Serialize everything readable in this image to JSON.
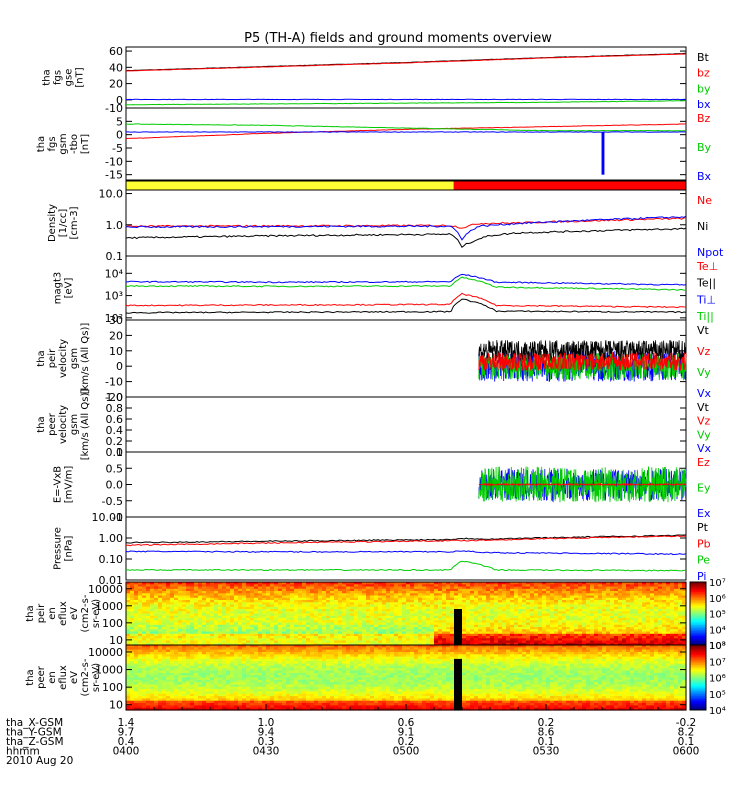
{
  "chart_data": {
    "type": "line",
    "title": "P5 (TH-A) fields and ground moments overview",
    "panels": [
      {
        "id": "fgs_gse",
        "ylabel": [
          "tha",
          "fgs",
          "gse",
          "[nT]"
        ],
        "ylim": [
          -10,
          65
        ],
        "scale": "linear",
        "yticks": [
          -10,
          0,
          20,
          40,
          60
        ],
        "ytick_labels": [
          "-10",
          "0",
          "20",
          "40",
          "60"
        ],
        "legend": [
          {
            "label": "Bt",
            "color": "#000000"
          },
          {
            "label": "bz",
            "color": "#ff0000"
          },
          {
            "label": "by",
            "color": "#00cc00"
          },
          {
            "label": "bx",
            "color": "#0000ff"
          }
        ],
        "series": [
          {
            "color": "#000000",
            "x": [
              0,
              0.25,
              0.5,
              0.75,
              1
            ],
            "y": [
              36,
              41,
              46,
              52,
              57
            ]
          },
          {
            "color": "#ff0000",
            "x": [
              0,
              0.25,
              0.5,
              0.75,
              1
            ],
            "y": [
              35.5,
              40.5,
              45.5,
              51.5,
              56.5
            ]
          },
          {
            "color": "#00cc00",
            "x": [
              0,
              0.25,
              0.5,
              0.75,
              1
            ],
            "y": [
              -6,
              -5,
              -4,
              -3,
              -1
            ]
          },
          {
            "color": "#0000ff",
            "x": [
              0,
              0.25,
              0.5,
              0.75,
              0.85,
              1
            ],
            "y": [
              0.5,
              0.5,
              0.5,
              0.5,
              0.5,
              0.5
            ]
          }
        ]
      },
      {
        "id": "fgs_gsm",
        "ylabel": [
          "tha",
          "fgs",
          "gsm",
          "-tbo",
          "[nT]"
        ],
        "ylim": [
          -17,
          10
        ],
        "scale": "linear",
        "yticks": [
          -15,
          -10,
          -5,
          0,
          5
        ],
        "ytick_labels": [
          "-15",
          "-10",
          "-5",
          "0",
          "5"
        ],
        "legend": [
          {
            "label": "Bz",
            "color": "#ff0000"
          },
          {
            "label": "By",
            "color": "#00cc00"
          },
          {
            "label": "Bx",
            "color": "#0000ff"
          }
        ],
        "series": [
          {
            "color": "#ff0000",
            "x": [
              0,
              0.25,
              0.5,
              0.75,
              1
            ],
            "y": [
              -1.5,
              0.5,
              2,
              3,
              4
            ]
          },
          {
            "color": "#00cc00",
            "x": [
              0,
              0.25,
              0.5,
              0.75,
              1
            ],
            "y": [
              4,
              3.5,
              2.5,
              1.5,
              1.5
            ]
          },
          {
            "color": "#0000ff",
            "x": [
              0,
              0.25,
              0.5,
              0.75,
              0.85,
              0.8505,
              0.853,
              0.856,
              1
            ],
            "y": [
              1,
              1,
              1,
              1,
              1,
              -15,
              1,
              1,
              1
            ]
          }
        ]
      },
      {
        "id": "status_bar",
        "type": "segments",
        "segments": [
          {
            "from": 0,
            "to": 0.585,
            "color": "#ffff33"
          },
          {
            "from": 0.585,
            "to": 1,
            "color": "#ff0000"
          }
        ]
      },
      {
        "id": "density",
        "ylabel": [
          "Density",
          "[1/cc]",
          "[cm-3]"
        ],
        "ylim": [
          0.1,
          13
        ],
        "scale": "log",
        "yticks": [
          0.1,
          1,
          10
        ],
        "ytick_labels": [
          "0.1",
          "1.0",
          "10.0"
        ],
        "legend": [
          {
            "label": "Ne",
            "color": "#ff0000"
          },
          {
            "label": "Ni",
            "color": "#000000"
          },
          {
            "label": "Npot",
            "color": "#0000ff"
          }
        ],
        "series": [
          {
            "color": "#ff0000",
            "x": [
              0,
              0.3,
              0.58,
              0.6,
              0.63,
              0.7,
              1
            ],
            "y": [
              0.9,
              0.92,
              0.95,
              0.8,
              1.1,
              1.15,
              1.6
            ]
          },
          {
            "color": "#0000ff",
            "x": [
              0,
              0.3,
              0.58,
              0.6,
              0.63,
              0.7,
              1
            ],
            "y": [
              0.85,
              0.88,
              0.9,
              0.35,
              0.9,
              1.1,
              1.8
            ]
          },
          {
            "color": "#000000",
            "x": [
              0,
              0.3,
              0.58,
              0.6,
              0.65,
              0.7,
              1
            ],
            "y": [
              0.38,
              0.45,
              0.5,
              0.2,
              0.45,
              0.55,
              0.75
            ]
          }
        ]
      },
      {
        "id": "temperature",
        "ylabel": [
          "magt3",
          "[eV]"
        ],
        "ylim": [
          80,
          60000
        ],
        "scale": "log",
        "yticks": [
          100,
          1000,
          10000
        ],
        "ytick_labels": [
          "10²",
          "10³",
          "10⁴"
        ],
        "legend": [
          {
            "label": "Te⊥",
            "color": "#ff0000"
          },
          {
            "label": "Te||",
            "color": "#000000"
          },
          {
            "label": "Ti⊥",
            "color": "#0000ff"
          },
          {
            "label": "Ti||",
            "color": "#00cc00"
          }
        ],
        "series": [
          {
            "color": "#0000ff",
            "x": [
              0,
              0.3,
              0.58,
              0.6,
              0.66,
              1
            ],
            "y": [
              4200,
              4000,
              4200,
              9000,
              4000,
              3000
            ]
          },
          {
            "color": "#00cc00",
            "x": [
              0,
              0.3,
              0.58,
              0.6,
              0.66,
              1
            ],
            "y": [
              2700,
              2600,
              2700,
              6500,
              2400,
              1800
            ]
          },
          {
            "color": "#ff0000",
            "x": [
              0,
              0.3,
              0.58,
              0.6,
              0.66,
              1
            ],
            "y": [
              360,
              380,
              400,
              1200,
              360,
              300
            ]
          },
          {
            "color": "#000000",
            "x": [
              0,
              0.3,
              0.58,
              0.6,
              0.66,
              1
            ],
            "y": [
              170,
              180,
              190,
              700,
              200,
              180
            ]
          }
        ]
      },
      {
        "id": "peir_velocity",
        "ylabel": [
          "tha",
          "peir",
          "velocity",
          "gsm",
          "[km/s (All Qs)]"
        ],
        "ylim": [
          -20,
          30
        ],
        "scale": "linear",
        "yticks": [
          -20,
          -10,
          0,
          10,
          20,
          30
        ],
        "ytick_labels": [
          "-20",
          "-10",
          "0",
          "10",
          "20",
          "30"
        ],
        "legend": [
          {
            "label": "Vt",
            "color": "#000000"
          },
          {
            "label": "Vz",
            "color": "#ff0000"
          },
          {
            "label": "Vy",
            "color": "#00cc00"
          },
          {
            "label": "Vx",
            "color": "#0000ff"
          }
        ],
        "noise_series": [
          {
            "color": "#0000ff",
            "x_start": 0.63,
            "x_end": 1,
            "center": 0,
            "amplitude": 10
          },
          {
            "color": "#00cc00",
            "x_start": 0.63,
            "x_end": 1,
            "center": 0,
            "amplitude": 9
          },
          {
            "color": "#000000",
            "x_start": 0.63,
            "x_end": 1,
            "center": 10,
            "amplitude": 7
          },
          {
            "color": "#ff0000",
            "x_start": 0.63,
            "x_end": 1,
            "center": 3,
            "amplitude": 6
          }
        ]
      },
      {
        "id": "peer_velocity",
        "ylabel": [
          "tha",
          "peer",
          "velocity",
          "gsm",
          "[km/s (All Qs)]"
        ],
        "ylim": [
          0,
          1
        ],
        "scale": "linear",
        "yticks": [
          0,
          0.2,
          0.4,
          0.6,
          0.8,
          1.0
        ],
        "ytick_labels": [
          "0.0",
          "0.2",
          "0.4",
          "0.6",
          "0.8",
          "1.0"
        ],
        "legend": [
          {
            "label": "Vt",
            "color": "#000000"
          },
          {
            "label": "Vz",
            "color": "#ff0000"
          },
          {
            "label": "Vy",
            "color": "#00cc00"
          },
          {
            "label": "Vx",
            "color": "#0000ff"
          }
        ],
        "series": []
      },
      {
        "id": "efield",
        "ylabel": [
          "E=-VxB",
          "[mV/m]"
        ],
        "ylim": [
          -1,
          1
        ],
        "scale": "linear",
        "yticks": [
          -1,
          -0.5,
          0,
          0.5,
          1
        ],
        "ytick_labels": [
          "-1",
          "-0.5",
          "0.0",
          "0.5",
          "1"
        ],
        "legend": [
          {
            "label": "Ez",
            "color": "#ff0000"
          },
          {
            "label": "Ey",
            "color": "#00cc00"
          },
          {
            "label": "Ex",
            "color": "#0000ff"
          }
        ],
        "noise_series": [
          {
            "color": "#0000ff",
            "x_start": 0.63,
            "x_end": 1,
            "center": 0,
            "amplitude": 0.5
          },
          {
            "color": "#00cc00",
            "x_start": 0.63,
            "x_end": 1,
            "center": 0,
            "amplitude": 0.55
          },
          {
            "color": "#ff0000",
            "x_start": 0.63,
            "x_end": 1,
            "center": 0,
            "amplitude": 0.02
          }
        ]
      },
      {
        "id": "pressure",
        "ylabel": [
          "Pressure",
          "[nPa]"
        ],
        "ylim": [
          0.01,
          10
        ],
        "scale": "log",
        "yticks": [
          0.01,
          0.1,
          1,
          10
        ],
        "ytick_labels": [
          "0.01",
          "0.10",
          "1.00",
          "10.00"
        ],
        "legend": [
          {
            "label": "Pt",
            "color": "#000000"
          },
          {
            "label": "Pb",
            "color": "#ff0000"
          },
          {
            "label": "Pe",
            "color": "#00cc00"
          },
          {
            "label": "Pi",
            "color": "#0000ff"
          }
        ],
        "series": [
          {
            "color": "#000000",
            "x": [
              0,
              0.3,
              0.58,
              0.6,
              0.65,
              1
            ],
            "y": [
              0.6,
              0.72,
              0.85,
              0.95,
              0.9,
              1.35
            ]
          },
          {
            "color": "#ff0000",
            "x": [
              0,
              0.3,
              0.58,
              0.6,
              0.65,
              1
            ],
            "y": [
              0.45,
              0.6,
              0.75,
              0.75,
              0.8,
              1.25
            ]
          },
          {
            "color": "#0000ff",
            "x": [
              0,
              0.3,
              0.58,
              0.6,
              0.65,
              1
            ],
            "y": [
              0.23,
              0.22,
              0.22,
              0.24,
              0.2,
              0.17
            ]
          },
          {
            "color": "#00cc00",
            "x": [
              0,
              0.3,
              0.58,
              0.6,
              0.66,
              1
            ],
            "y": [
              0.03,
              0.03,
              0.03,
              0.08,
              0.03,
              0.028
            ]
          }
        ]
      },
      {
        "id": "peir_spectrogram",
        "type": "spectrogram",
        "ylabel": [
          "tha",
          "peir",
          "en",
          "eflux",
          "eV",
          "(cm2-s-",
          "sr-eV)"
        ],
        "ylim": [
          5,
          25000
        ],
        "scale": "log",
        "yticks": [
          10,
          100,
          1000,
          10000
        ],
        "ytick_labels": [
          "10",
          "100",
          "1000",
          "10000"
        ],
        "colorbar_range": [
          1000,
          10000000
        ],
        "colorbar_ticks": [
          "10³",
          "10⁴",
          "10⁵",
          "10⁶",
          "10⁷"
        ]
      },
      {
        "id": "peer_spectrogram",
        "type": "spectrogram",
        "ylabel": [
          "tha",
          "peer",
          "en",
          "eflux",
          "eV",
          "(cm2-s-",
          "sr-eV)"
        ],
        "ylim": [
          5,
          25000
        ],
        "scale": "log",
        "yticks": [
          10,
          100,
          1000,
          10000
        ],
        "ytick_labels": [
          "10",
          "100",
          "1000",
          "10000"
        ],
        "colorbar_range": [
          10000,
          100000000
        ],
        "colorbar_ticks": [
          "10⁴",
          "10⁵",
          "10⁶",
          "10⁷",
          "10⁸"
        ]
      }
    ],
    "x_axis": {
      "rows": [
        {
          "label": "tha_X-GSM",
          "values": [
            "1.4",
            "1.0",
            "0.6",
            "0.2",
            "-0.2"
          ]
        },
        {
          "label": "tha_Y-GSM",
          "values": [
            "9.7",
            "9.4",
            "9.1",
            "8.6",
            "8.2"
          ]
        },
        {
          "label": "tha_Z-GSM",
          "values": [
            "0.4",
            "0.3",
            "0.2",
            "0.1",
            "0.1"
          ]
        },
        {
          "label": "hhmm",
          "values": [
            "0400",
            "0430",
            "0500",
            "0530",
            "0600"
          ]
        }
      ],
      "date": "2010 Aug 20"
    }
  }
}
